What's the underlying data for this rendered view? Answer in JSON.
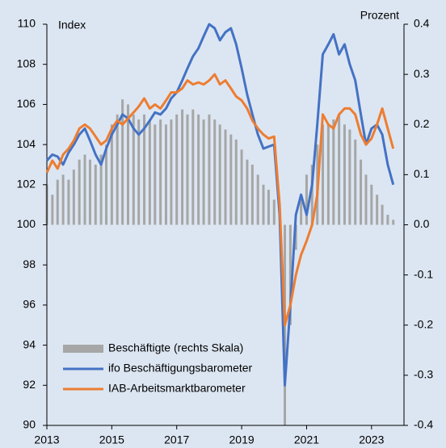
{
  "chart_data": {
    "type": "line",
    "subtitle": "Index",
    "y2_label": "Prozent",
    "x": [
      2013.0,
      2013.17,
      2013.33,
      2013.5,
      2013.67,
      2013.83,
      2014.0,
      2014.17,
      2014.33,
      2014.5,
      2014.67,
      2014.83,
      2015.0,
      2015.17,
      2015.33,
      2015.5,
      2015.67,
      2015.83,
      2016.0,
      2016.17,
      2016.33,
      2016.5,
      2016.67,
      2016.83,
      2017.0,
      2017.17,
      2017.33,
      2017.5,
      2017.67,
      2017.83,
      2018.0,
      2018.17,
      2018.33,
      2018.5,
      2018.67,
      2018.83,
      2019.0,
      2019.17,
      2019.33,
      2019.5,
      2019.67,
      2019.83,
      2020.0,
      2020.17,
      2020.33,
      2020.5,
      2020.67,
      2020.83,
      2021.0,
      2021.17,
      2021.33,
      2021.5,
      2021.67,
      2021.83,
      2022.0,
      2022.17,
      2022.33,
      2022.5,
      2022.67,
      2022.83,
      2023.0,
      2023.17,
      2023.33,
      2023.5,
      2023.67
    ],
    "series": [
      {
        "name": "Beschäftigte (rechts Skala)",
        "type": "bar",
        "axis": "y2",
        "color": "#a6a6a6",
        "values": [
          0.08,
          0.06,
          0.09,
          0.1,
          0.09,
          0.11,
          0.13,
          0.14,
          0.13,
          0.12,
          0.14,
          0.16,
          0.2,
          0.22,
          0.25,
          0.24,
          0.22,
          0.21,
          0.22,
          0.21,
          0.2,
          0.21,
          0.2,
          0.21,
          0.22,
          0.23,
          0.22,
          0.23,
          0.22,
          0.21,
          0.22,
          0.21,
          0.2,
          0.19,
          0.18,
          0.17,
          0.15,
          0.13,
          0.12,
          0.1,
          0.08,
          0.07,
          0.05,
          0.0,
          -0.4,
          -0.2,
          -0.05,
          0.05,
          0.1,
          0.12,
          0.16,
          0.2,
          0.2,
          0.21,
          0.22,
          0.2,
          0.19,
          0.17,
          0.13,
          0.1,
          0.08,
          0.06,
          0.04,
          0.02,
          0.01
        ]
      },
      {
        "name": "ifo Beschäftigungsbarometer",
        "type": "line",
        "color": "#4472c4",
        "values": [
          103.2,
          103.5,
          103.4,
          103.0,
          103.6,
          104.0,
          104.5,
          104.8,
          104.2,
          103.5,
          103.0,
          103.8,
          104.5,
          105.0,
          105.5,
          105.3,
          104.8,
          104.5,
          104.8,
          105.2,
          105.6,
          105.5,
          105.8,
          106.3,
          106.6,
          107.2,
          107.8,
          108.4,
          108.8,
          109.4,
          110.0,
          109.8,
          109.2,
          109.6,
          109.8,
          109.0,
          107.8,
          106.5,
          105.5,
          104.5,
          103.8,
          103.9,
          104.0,
          100.5,
          92.0,
          96.0,
          100.5,
          101.5,
          100.5,
          102.0,
          105.0,
          108.5,
          109.0,
          109.5,
          108.5,
          109.0,
          108.0,
          107.2,
          105.5,
          104.0,
          104.8,
          105.0,
          104.5,
          103.0,
          102.0
        ]
      },
      {
        "name": "IAB-Arbeitsmarktbarometer",
        "type": "line",
        "color": "#ed7d31",
        "values": [
          102.6,
          103.2,
          102.8,
          103.5,
          103.8,
          104.2,
          104.8,
          105.0,
          104.8,
          104.4,
          104.0,
          104.2,
          104.8,
          105.2,
          105.0,
          105.3,
          105.6,
          105.9,
          106.3,
          105.8,
          106.0,
          105.8,
          106.2,
          106.6,
          106.6,
          106.8,
          107.2,
          107.0,
          107.1,
          107.0,
          107.2,
          107.5,
          107.0,
          107.2,
          106.8,
          106.4,
          106.2,
          105.8,
          105.2,
          104.8,
          104.5,
          104.3,
          104.4,
          101.0,
          95.0,
          96.0,
          97.5,
          98.5,
          99.2,
          100.0,
          101.5,
          105.5,
          105.0,
          104.8,
          105.5,
          105.8,
          105.8,
          105.5,
          104.5,
          104.0,
          104.3,
          105.0,
          105.8,
          104.8,
          103.8
        ]
      }
    ],
    "xlim": [
      2013,
      2024
    ],
    "xticks": [
      2013,
      2015,
      2017,
      2019,
      2021,
      2023
    ],
    "ylim": [
      90,
      110
    ],
    "yticks": [
      90,
      92,
      94,
      96,
      98,
      100,
      102,
      104,
      106,
      108,
      110
    ],
    "y2lim": [
      -0.4,
      0.4
    ],
    "y2ticks": [
      -0.4,
      -0.3,
      -0.2,
      -0.1,
      {
        "value": 0,
        "label": "0.0"
      },
      0.1,
      0.2,
      0.3,
      0.4
    ],
    "legend": "lower left"
  }
}
